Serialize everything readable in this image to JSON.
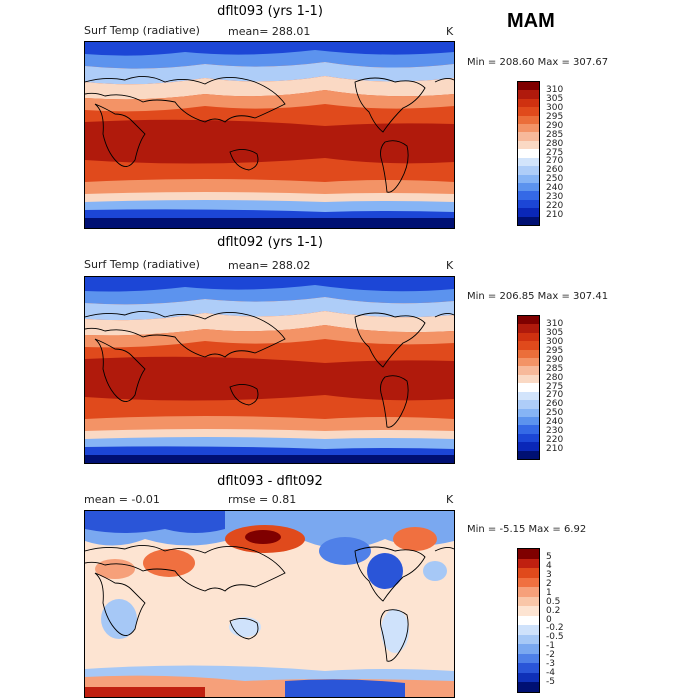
{
  "season": "MAM",
  "colors": {
    "temp": [
      "#7f0000",
      "#b01a0c",
      "#cf3110",
      "#e04a1c",
      "#eb6e3a",
      "#f39366",
      "#f7b99a",
      "#fad9c4",
      "#ffffff",
      "#d2e4fb",
      "#aecdf8",
      "#86b4f5",
      "#5c93ee",
      "#3569e6",
      "#1c46d6",
      "#0a27b8",
      "#001073"
    ],
    "diff": [
      "#7f0000",
      "#c02010",
      "#e04a1c",
      "#f07040",
      "#f6a07a",
      "#f9c6a8",
      "#fde4d2",
      "#ffffff",
      "#cfe2fb",
      "#a6c8f6",
      "#7aa8f0",
      "#4f80e8",
      "#2a55d8",
      "#0f30b8",
      "#001073"
    ]
  },
  "panels": [
    {
      "title": "dflt093 (yrs 1-1)",
      "variable": "Surf Temp (radiative)",
      "mean": "mean= 288.01",
      "units": "K",
      "minmax": "Min = 208.60 Max = 307.67",
      "colorbar_labels": [
        "310",
        "305",
        "300",
        "295",
        "290",
        "285",
        "280",
        "275",
        "270",
        "260",
        "250",
        "240",
        "230",
        "220",
        "210"
      ]
    },
    {
      "title": "dflt092 (yrs 1-1)",
      "variable": "Surf Temp (radiative)",
      "mean": "mean= 288.02",
      "units": "K",
      "minmax": "Min = 206.85 Max = 307.41",
      "colorbar_labels": [
        "310",
        "305",
        "300",
        "295",
        "290",
        "285",
        "280",
        "275",
        "270",
        "260",
        "250",
        "240",
        "230",
        "220",
        "210"
      ]
    },
    {
      "title": "dflt093 - dflt092",
      "mean": "mean =   -0.01",
      "rmse": "rmse =    0.81",
      "units": "K",
      "minmax": "Min =  -5.15 Max =    6.92",
      "colorbar_labels": [
        "5",
        "4",
        "3",
        "2",
        "1",
        "0.5",
        "0.2",
        "0",
        "-0.2",
        "-0.5",
        "-1",
        "-2",
        "-3",
        "-4",
        "-5"
      ]
    }
  ]
}
